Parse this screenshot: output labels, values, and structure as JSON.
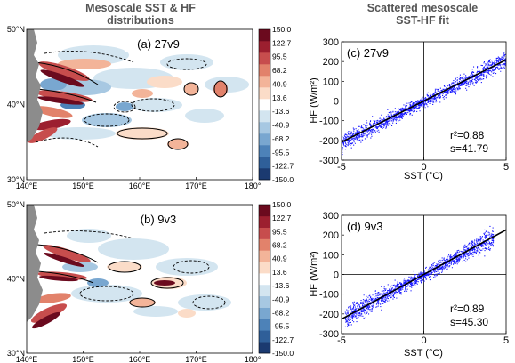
{
  "headings": {
    "left": [
      "Mesoscale SST & HF",
      "distributions"
    ],
    "right": [
      "Scattered mesoscale",
      "SST-HF fit"
    ]
  },
  "colors": {
    "scatter": "#1a1aff",
    "fit_line": "#000000",
    "land": "#8c8c8c",
    "colorbar": [
      "#1b3a70",
      "#2f5f99",
      "#4d82b8",
      "#79a7d0",
      "#a7c8e2",
      "#d3e5f0",
      "#ffffff",
      "#fbdcc8",
      "#f3b499",
      "#e2826b",
      "#c74d4d",
      "#9c1f2f",
      "#6b0a1e"
    ]
  },
  "chart_data": [
    {
      "type": "heatmap",
      "panel_label": "(a) 27v9",
      "x_ticks": [
        "140°E",
        "150°E",
        "160°E",
        "170°E",
        "180°"
      ],
      "y_ticks": [
        "50°N",
        "40°N",
        "30°N"
      ],
      "xlim": [
        140,
        180
      ],
      "ylim": [
        30,
        50
      ],
      "colorbar_ticks": [
        "150.0",
        "122.7",
        "95.5",
        "68.2",
        "40.9",
        "13.6",
        "-13.6",
        "-40.9",
        "-68.2",
        "-95.5",
        "-122.7",
        "-150.0"
      ],
      "colorbar_range": [
        -150,
        150
      ]
    },
    {
      "type": "scatter",
      "panel_label": "(c) 27v9",
      "xlabel": "SST (°C)",
      "ylabel": "HF (W/m²)",
      "xlim": [
        -5,
        5
      ],
      "ylim": [
        -300,
        300
      ],
      "x_ticks": [
        "-5",
        "0",
        "5"
      ],
      "y_ticks": [
        "300",
        "200",
        "100",
        "0",
        "-100",
        "-200",
        "-300"
      ],
      "r2_label": "r²=0.88",
      "s_label": "s=41.79",
      "r2": 0.88,
      "slope": 41.79
    },
    {
      "type": "heatmap",
      "panel_label": "(b) 9v3",
      "x_ticks": [
        "140°E",
        "150°E",
        "160°E",
        "170°E",
        "180°"
      ],
      "y_ticks": [
        "50°N",
        "40°N",
        "30°N"
      ],
      "xlim": [
        140,
        180
      ],
      "ylim": [
        30,
        50
      ],
      "colorbar_ticks": [
        "150.0",
        "122.7",
        "95.5",
        "68.2",
        "40.9",
        "13.6",
        "-13.6",
        "-40.9",
        "-68.2",
        "-95.5",
        "-122.7",
        "-150.0"
      ],
      "colorbar_range": [
        -150,
        150
      ]
    },
    {
      "type": "scatter",
      "panel_label": "(d) 9v3",
      "xlabel": "SST (°C)",
      "ylabel": "HF (W/m²)",
      "xlim": [
        -5,
        5
      ],
      "ylim": [
        -300,
        300
      ],
      "x_ticks": [
        "-5",
        "0",
        "5"
      ],
      "y_ticks": [
        "300",
        "200",
        "100",
        "0",
        "-100",
        "-200",
        "-300"
      ],
      "r2_label": "r²=0.89",
      "s_label": "s=45.30",
      "r2": 0.89,
      "slope": 45.3
    }
  ]
}
